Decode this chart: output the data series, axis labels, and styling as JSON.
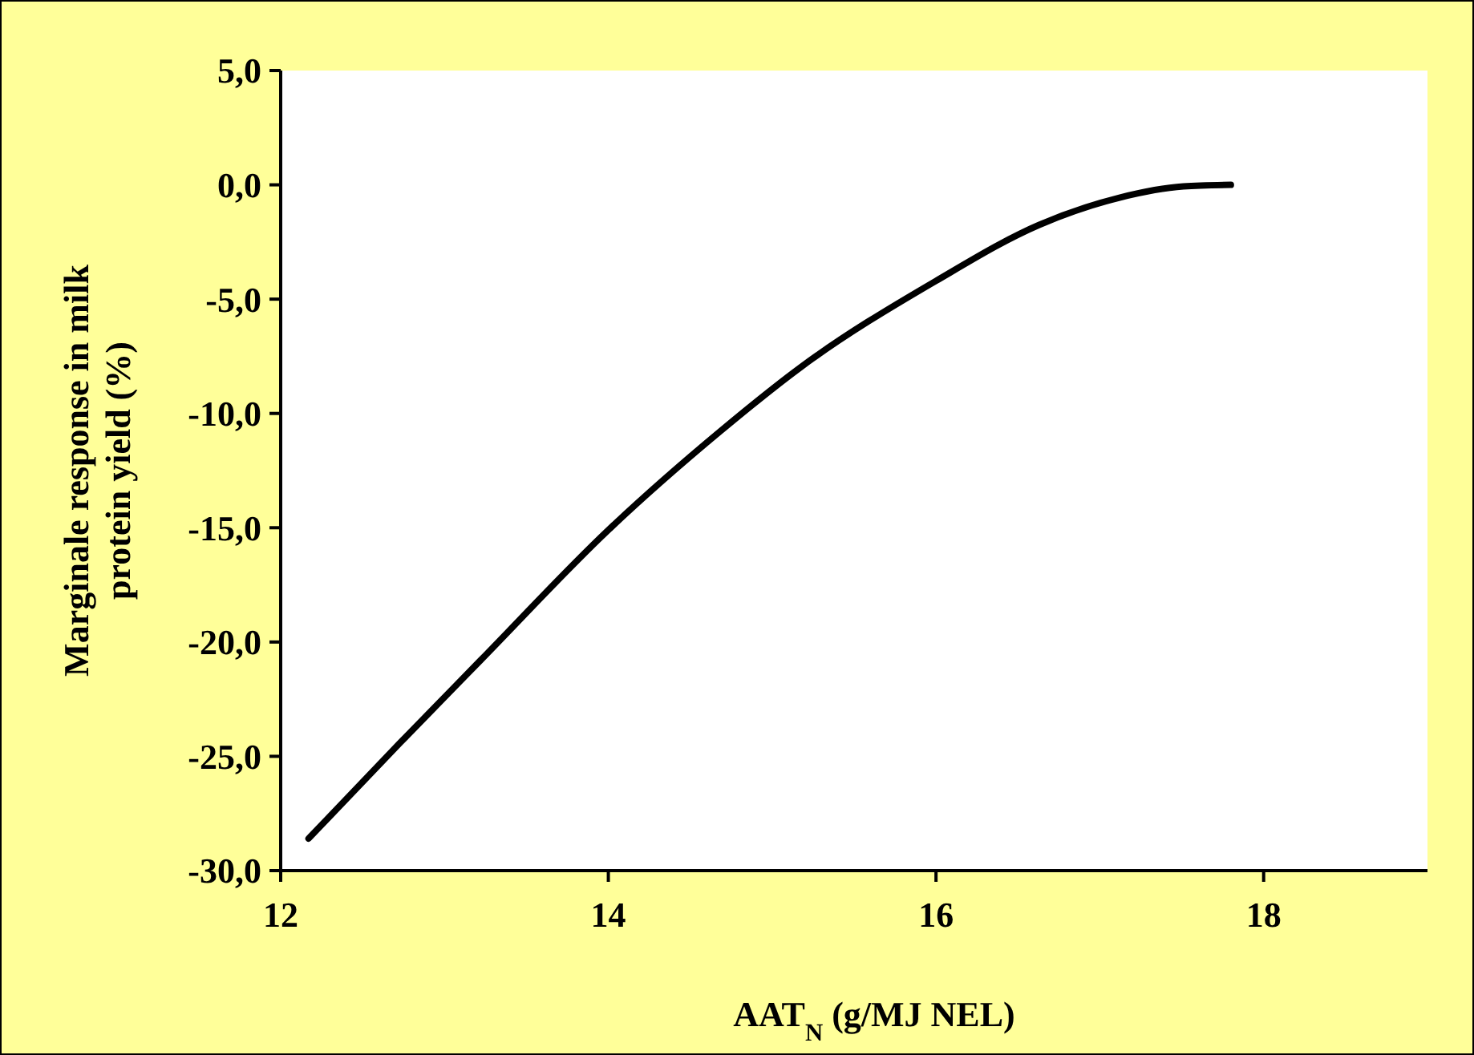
{
  "chart_data": {
    "type": "line",
    "xlabel": "AAT$_{N}$ (g/MJ NEL)",
    "ylabel": "Marginale  response in milk\nprotein yield (%)",
    "x": [
      12.17,
      12.73,
      13.22,
      14.0,
      14.68,
      15.17,
      16.0,
      16.63,
      17.12,
      17.51,
      17.8
    ],
    "series": [
      {
        "color": "#000000",
        "values": [
          -28.6,
          -24.4,
          -20.8,
          -15.1,
          -10.8,
          -8.0,
          -4.2,
          -1.75,
          -0.56,
          -0.07,
          0
        ]
      }
    ],
    "xlim": [
      12,
      19
    ],
    "xticks": [
      12,
      14,
      16,
      18
    ],
    "ylim": [
      -30,
      5
    ],
    "yticks": [
      {
        "value": -30,
        "label": "-30,0"
      },
      {
        "value": -25,
        "label": "-25,0"
      },
      {
        "value": -20,
        "label": "-20,0"
      },
      {
        "value": -15,
        "label": "-15,0"
      },
      {
        "value": -10,
        "label": "-10,0"
      },
      {
        "value": -5,
        "label": "-5,0"
      },
      {
        "value": 0,
        "label": "0,0"
      },
      {
        "value": 5,
        "label": "5,0"
      }
    ],
    "grid": false,
    "marker": "none",
    "line_style": "solid"
  }
}
